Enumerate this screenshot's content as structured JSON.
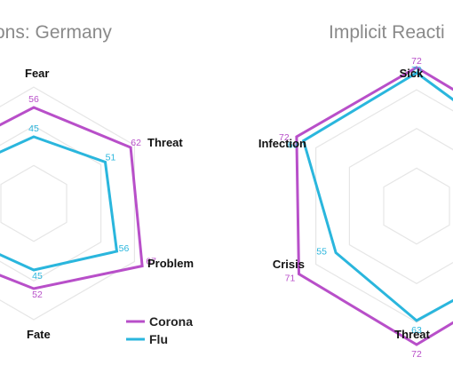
{
  "chart_data": [
    {
      "type": "radar",
      "title": "ons: Germany",
      "grid": true,
      "axes": [
        "Fear",
        "Threat",
        "Problem",
        "Fate",
        "",
        ""
      ],
      "rlim": [
        20,
        80
      ],
      "series": [
        {
          "name": "Corona",
          "color": "#b84fc9",
          "values": [
            56,
            62,
            67,
            52,
            null,
            null
          ]
        },
        {
          "name": "Flu",
          "color": "#2ab6dd",
          "values": [
            45,
            51,
            56,
            45,
            null,
            null
          ]
        }
      ],
      "legend_position": "bottom"
    },
    {
      "type": "radar",
      "title": "Implicit Reacti",
      "grid": true,
      "axes": [
        "Sick",
        "",
        "",
        "Threat",
        "Crisis",
        "Infection"
      ],
      "rlim": [
        20,
        80
      ],
      "series": [
        {
          "name": "Corona",
          "color": "#b84fc9",
          "values": [
            72,
            null,
            null,
            72,
            71,
            72
          ]
        },
        {
          "name": "Flu",
          "color": "#2ab6dd",
          "values": [
            70,
            null,
            null,
            63,
            55,
            69
          ]
        }
      ]
    }
  ],
  "legend": [
    {
      "name": "Corona",
      "color": "#b84fc9"
    },
    {
      "name": "Flu",
      "color": "#2ab6dd"
    }
  ]
}
